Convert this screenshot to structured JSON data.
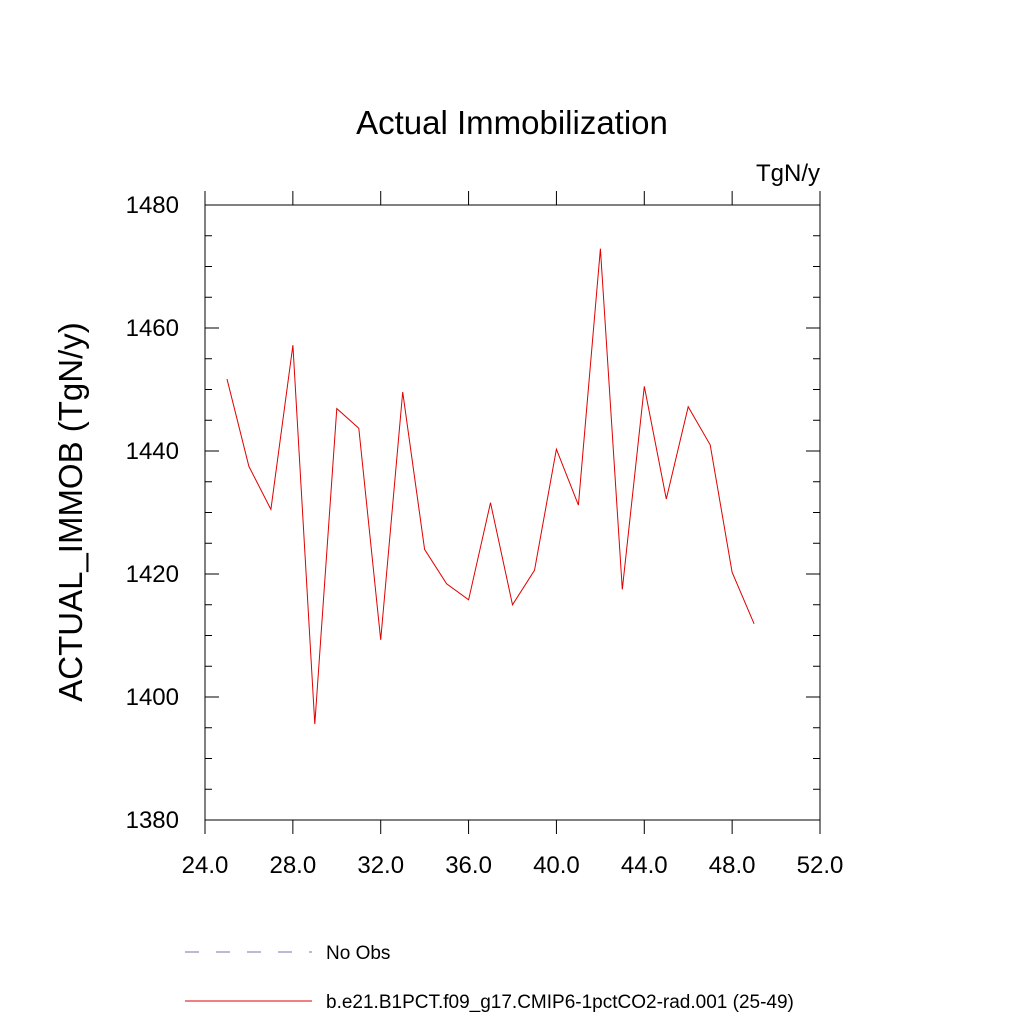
{
  "chart_data": {
    "type": "line",
    "title": "Actual Immobilization",
    "units": "TgN/y",
    "ylabel": "ACTUAL_IMMOB  (TgN/y)",
    "xlabel": "",
    "xlim": [
      24,
      52
    ],
    "ylim": [
      1380,
      1480
    ],
    "xticks": [
      "24.0",
      "28.0",
      "32.0",
      "36.0",
      "40.0",
      "44.0",
      "48.0",
      "52.0"
    ],
    "yticks": [
      "1380",
      "1400",
      "1420",
      "1440",
      "1460",
      "1480"
    ],
    "grid": false,
    "legend_position": "bottom",
    "legend": [
      {
        "label": "No Obs",
        "style": "dashed",
        "color": "#7b6fb3"
      },
      {
        "label": "b.e21.B1PCT.f09_g17.CMIP6-1pctCO2-rad.001 (25-49)",
        "style": "solid",
        "color": "#e00000"
      }
    ],
    "series": [
      {
        "name": "b.e21.B1PCT.f09_g17.CMIP6-1pctCO2-rad.001 (25-49)",
        "color": "#e00000",
        "x": [
          25,
          26,
          27,
          28,
          29,
          30,
          31,
          32,
          33,
          34,
          35,
          36,
          37,
          38,
          39,
          40,
          41,
          42,
          43,
          44,
          45,
          46,
          47,
          48,
          49
        ],
        "y": [
          1451.7,
          1437.5,
          1430.5,
          1457.2,
          1395.6,
          1446.9,
          1443.7,
          1409.3,
          1449.6,
          1424.0,
          1418.4,
          1415.8,
          1431.6,
          1415.0,
          1420.6,
          1440.3,
          1431.2,
          1472.9,
          1417.5,
          1450.5,
          1432.2,
          1447.2,
          1441.0,
          1420.3,
          1411.9
        ]
      }
    ]
  }
}
